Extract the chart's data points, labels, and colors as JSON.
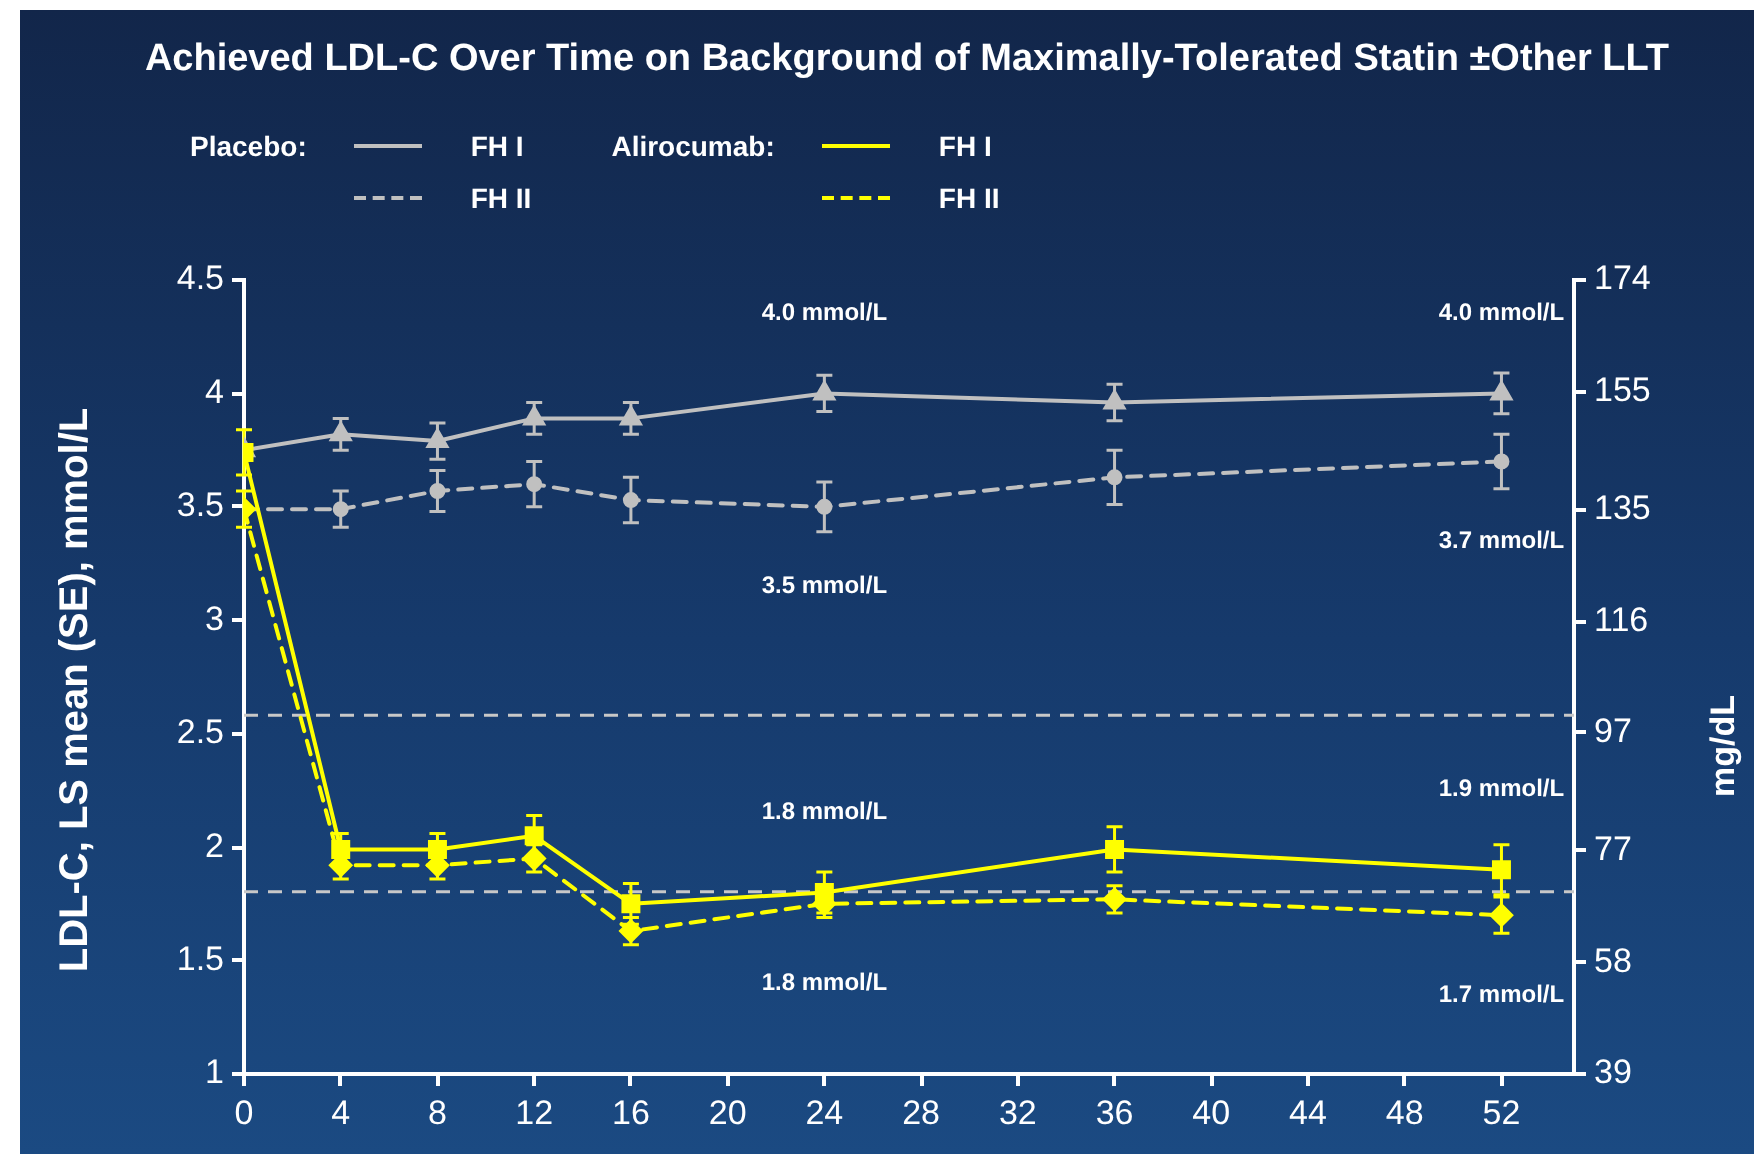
{
  "chart_data": {
    "type": "line",
    "title": "Achieved LDL-C Over Time on Background of Maximally-Tolerated Statin ±Other LLT",
    "ylabel": "LDL-C, LS mean (SE), mmol/L",
    "y2label": "mg/dL",
    "x": [
      0,
      4,
      8,
      12,
      16,
      24,
      36,
      52
    ],
    "series": [
      {
        "name": "FH I",
        "color": "#c0c0c0",
        "marker": "triangle",
        "line_style": "solid",
        "values": [
          3.75,
          3.82,
          3.79,
          3.89,
          3.89,
          4.0,
          3.96,
          4.0
        ],
        "errors": [
          null,
          0.07,
          0.08,
          0.07,
          0.07,
          0.08,
          0.08,
          0.09
        ],
        "value_labels": [
          null,
          null,
          null,
          null,
          null,
          "4.0 mmol/L",
          null,
          "4.0 mmol/L"
        ]
      },
      {
        "name": "FH II",
        "color": "#c0c0c0",
        "marker": "circle",
        "line_style": "dashed",
        "values": [
          3.49,
          3.49,
          3.57,
          3.6,
          3.53,
          3.5,
          3.63,
          3.7
        ],
        "errors": [
          null,
          0.08,
          0.09,
          0.1,
          0.1,
          0.11,
          0.12,
          0.12
        ],
        "value_labels": [
          null,
          null,
          null,
          null,
          null,
          "3.5 mmol/L",
          null,
          "3.7 mmol/L"
        ]
      },
      {
        "name": "FH I",
        "color": "#ffff00",
        "marker": "square",
        "line_style": "solid",
        "values": [
          3.74,
          1.99,
          1.99,
          2.05,
          1.75,
          1.8,
          1.99,
          1.9
        ],
        "errors": [
          0.1,
          0.07,
          0.07,
          0.09,
          0.09,
          0.09,
          0.1,
          0.11
        ],
        "value_labels": [
          null,
          null,
          null,
          null,
          null,
          "1.8 mmol/L",
          null,
          "1.9 mmol/L"
        ]
      },
      {
        "name": "FH II",
        "color": "#ffff00",
        "marker": "diamond",
        "line_style": "dashed",
        "values": [
          3.49,
          1.92,
          1.92,
          1.95,
          1.63,
          1.75,
          1.77,
          1.7
        ],
        "errors": [
          0.08,
          0.06,
          0.06,
          0.06,
          0.06,
          0.06,
          0.06,
          0.08
        ],
        "value_labels": [
          null,
          null,
          null,
          null,
          null,
          "1.8 mmol/L",
          null,
          "1.7 mmol/L"
        ]
      }
    ],
    "xlim": [
      0,
      55
    ],
    "xticks": [
      0,
      4,
      8,
      12,
      16,
      20,
      24,
      28,
      32,
      36,
      40,
      44,
      48,
      52
    ],
    "ylim": [
      1,
      4.5
    ],
    "yticks": [
      1,
      1.5,
      2,
      2.5,
      3,
      3.5,
      4,
      4.5
    ],
    "y2lim": [
      39,
      174
    ],
    "y2ticks": [
      39,
      58,
      77,
      97,
      116,
      135,
      155,
      174
    ],
    "ref_lines": [
      {
        "axis": "y2",
        "value": 100,
        "color": "#c8c8c8",
        "line_style": "dashed"
      },
      {
        "axis": "y2",
        "value": 70,
        "color": "#c8c8c8",
        "line_style": "dashed"
      }
    ],
    "legend": "top",
    "annotations": [
      "Placebo:",
      "Alirocumab:"
    ]
  }
}
